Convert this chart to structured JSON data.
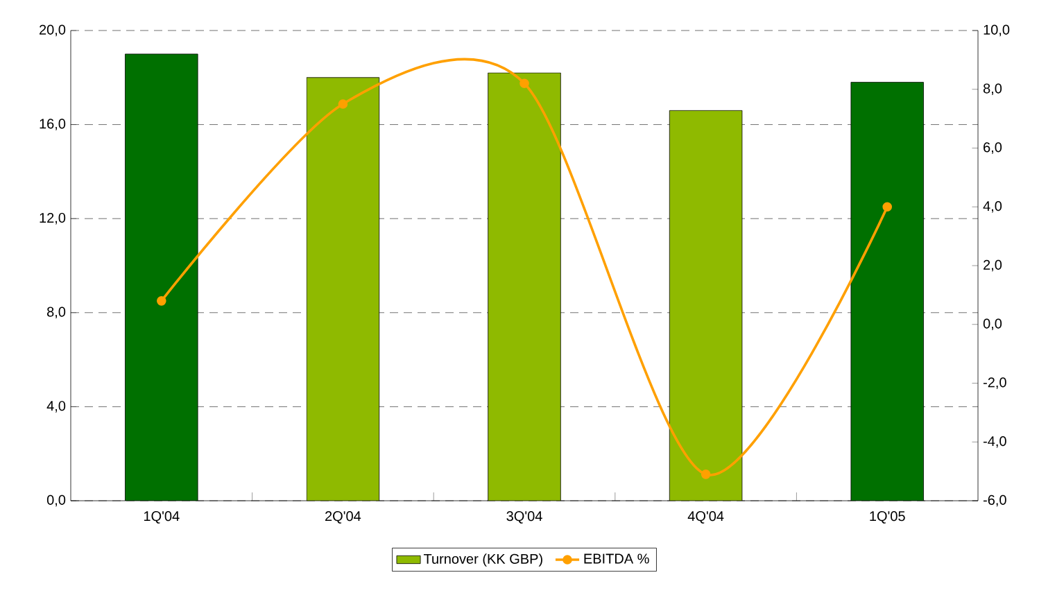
{
  "chart_data": {
    "type": "bar",
    "categories": [
      "1Q'04",
      "2Q'04",
      "3Q'04",
      "4Q'04",
      "1Q'05"
    ],
    "series": [
      {
        "name": "Turnover (KK GBP)",
        "color": "#8fba00",
        "colors": [
          "#007000",
          "#8fba00",
          "#8fba00",
          "#8fba00",
          "#007000"
        ],
        "values": [
          19.0,
          18.0,
          18.2,
          16.6,
          17.8
        ]
      },
      {
        "name": "EBITDA %",
        "type": "line",
        "axis": "y2",
        "color": "#ffa000",
        "marker": "circle",
        "values": [
          0.8,
          7.5,
          8.2,
          -5.1,
          4.0
        ]
      }
    ],
    "ylim": [
      0,
      20
    ],
    "yticks": [
      {
        "value": 0,
        "label": "0,0"
      },
      {
        "value": 4,
        "label": "4,0"
      },
      {
        "value": 8,
        "label": "8,0"
      },
      {
        "value": 12,
        "label": "12,0"
      },
      {
        "value": 16,
        "label": "16,0"
      },
      {
        "value": 20,
        "label": "20,0"
      }
    ],
    "y2lim": [
      -6,
      10
    ],
    "y2ticks": [
      {
        "value": -6,
        "label": "-6,0"
      },
      {
        "value": -4,
        "label": "-4,0"
      },
      {
        "value": -2,
        "label": "-2,0"
      },
      {
        "value": 0,
        "label": "0,0"
      },
      {
        "value": 2,
        "label": "2,0"
      },
      {
        "value": 4,
        "label": "4,0"
      },
      {
        "value": 6,
        "label": "6,0"
      },
      {
        "value": 8,
        "label": "8,0"
      },
      {
        "value": 10,
        "label": "10,0"
      }
    ],
    "grid": "y",
    "legend": "bottom"
  }
}
